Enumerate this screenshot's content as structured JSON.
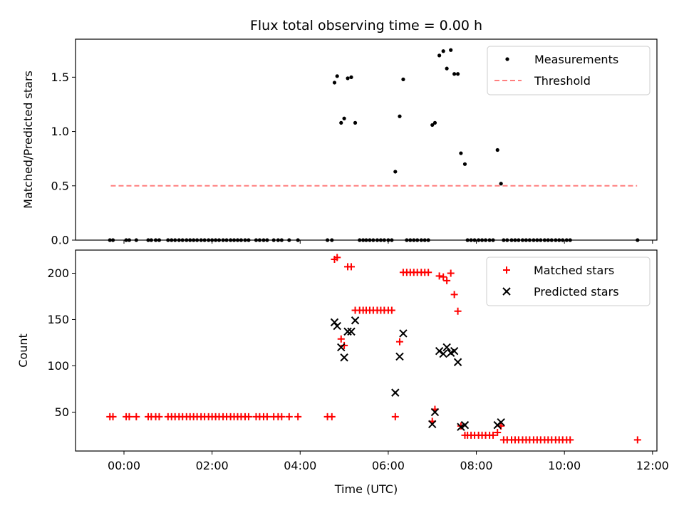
{
  "title": "Flux total observing time = 0.00 h",
  "chart_data": [
    {
      "type": "scatter",
      "ylabel": "Matched/Predicted stars",
      "ylim": [
        0,
        1.85
      ],
      "yticks": [
        "0.0",
        "0.5",
        "1.0",
        "1.5"
      ],
      "ytick_values": [
        0,
        0.5,
        1.0,
        1.5
      ],
      "xlim": [
        -1.1,
        12.1
      ],
      "legend_position": "top-right",
      "series": [
        {
          "name": "Measurements",
          "color": "#000000",
          "marker": "dot",
          "points": [
            [
              -0.32,
              0
            ],
            [
              -0.25,
              0
            ],
            [
              0.05,
              0
            ],
            [
              0.12,
              0
            ],
            [
              0.28,
              0
            ],
            [
              0.55,
              0
            ],
            [
              0.62,
              0
            ],
            [
              0.72,
              0
            ],
            [
              0.8,
              0
            ],
            [
              1.0,
              0
            ],
            [
              1.08,
              0
            ],
            [
              1.16,
              0
            ],
            [
              1.25,
              0
            ],
            [
              1.33,
              0
            ],
            [
              1.42,
              0
            ],
            [
              1.5,
              0
            ],
            [
              1.58,
              0
            ],
            [
              1.66,
              0
            ],
            [
              1.75,
              0
            ],
            [
              1.83,
              0
            ],
            [
              1.92,
              0
            ],
            [
              2.0,
              0
            ],
            [
              2.08,
              0
            ],
            [
              2.16,
              0
            ],
            [
              2.25,
              0
            ],
            [
              2.33,
              0
            ],
            [
              2.42,
              0
            ],
            [
              2.5,
              0
            ],
            [
              2.58,
              0
            ],
            [
              2.66,
              0
            ],
            [
              2.75,
              0
            ],
            [
              2.83,
              0
            ],
            [
              3.0,
              0
            ],
            [
              3.08,
              0
            ],
            [
              3.17,
              0
            ],
            [
              3.25,
              0
            ],
            [
              3.4,
              0
            ],
            [
              3.5,
              0
            ],
            [
              3.58,
              0
            ],
            [
              3.75,
              0
            ],
            [
              3.95,
              0
            ],
            [
              4.62,
              0
            ],
            [
              4.72,
              0
            ],
            [
              4.78,
              1.45
            ],
            [
              4.84,
              1.51
            ],
            [
              4.93,
              1.08
            ],
            [
              5.0,
              1.12
            ],
            [
              5.08,
              1.49
            ],
            [
              5.16,
              1.5
            ],
            [
              5.25,
              1.08
            ],
            [
              5.35,
              0
            ],
            [
              5.43,
              0
            ],
            [
              5.5,
              0
            ],
            [
              5.58,
              0
            ],
            [
              5.66,
              0
            ],
            [
              5.75,
              0
            ],
            [
              5.83,
              0
            ],
            [
              5.91,
              0
            ],
            [
              6.0,
              0
            ],
            [
              6.08,
              0
            ],
            [
              6.16,
              0.63
            ],
            [
              6.26,
              1.14
            ],
            [
              6.34,
              1.48
            ],
            [
              6.42,
              0
            ],
            [
              6.5,
              0
            ],
            [
              6.58,
              0
            ],
            [
              6.66,
              0
            ],
            [
              6.75,
              0
            ],
            [
              6.83,
              0
            ],
            [
              6.91,
              0
            ],
            [
              7.0,
              1.06
            ],
            [
              7.06,
              1.08
            ],
            [
              7.16,
              1.7
            ],
            [
              7.25,
              1.74
            ],
            [
              7.33,
              1.58
            ],
            [
              7.42,
              1.75
            ],
            [
              7.5,
              1.53
            ],
            [
              7.58,
              1.53
            ],
            [
              7.65,
              0.8
            ],
            [
              7.74,
              0.7
            ],
            [
              7.8,
              0
            ],
            [
              7.88,
              0
            ],
            [
              7.96,
              0
            ],
            [
              8.05,
              0
            ],
            [
              8.13,
              0
            ],
            [
              8.21,
              0
            ],
            [
              8.3,
              0
            ],
            [
              8.38,
              0
            ],
            [
              8.48,
              0.83
            ],
            [
              8.56,
              0.52
            ],
            [
              8.62,
              0
            ],
            [
              8.7,
              0
            ],
            [
              8.8,
              0
            ],
            [
              8.88,
              0
            ],
            [
              8.96,
              0
            ],
            [
              9.05,
              0
            ],
            [
              9.13,
              0
            ],
            [
              9.21,
              0
            ],
            [
              9.3,
              0
            ],
            [
              9.38,
              0
            ],
            [
              9.46,
              0
            ],
            [
              9.55,
              0
            ],
            [
              9.63,
              0
            ],
            [
              9.71,
              0
            ],
            [
              9.8,
              0
            ],
            [
              9.88,
              0
            ],
            [
              9.96,
              0
            ],
            [
              10.05,
              0
            ],
            [
              10.13,
              0
            ],
            [
              11.66,
              0
            ]
          ]
        },
        {
          "name": "Threshold",
          "color": "#ff7f7f",
          "style": "dashed",
          "points": [
            [
              -0.3,
              0.5
            ],
            [
              11.65,
              0.5
            ]
          ]
        }
      ]
    },
    {
      "type": "scatter",
      "xlabel": "Time (UTC)",
      "ylabel": "Count",
      "ylim": [
        8,
        225
      ],
      "yticks": [
        "50",
        "100",
        "150",
        "200"
      ],
      "ytick_values": [
        50,
        100,
        150,
        200
      ],
      "xlim": [
        -1.1,
        12.1
      ],
      "xticks": [
        "00:00",
        "02:00",
        "04:00",
        "06:00",
        "08:00",
        "10:00",
        "12:00"
      ],
      "xtick_values": [
        0,
        2,
        4,
        6,
        8,
        10,
        12
      ],
      "legend_position": "top-right",
      "series": [
        {
          "name": "Matched stars",
          "color": "#ff0000",
          "marker": "plus",
          "points": [
            [
              -0.32,
              45
            ],
            [
              -0.25,
              45
            ],
            [
              0.05,
              45
            ],
            [
              0.12,
              45
            ],
            [
              0.28,
              45
            ],
            [
              0.55,
              45
            ],
            [
              0.62,
              45
            ],
            [
              0.72,
              45
            ],
            [
              0.8,
              45
            ],
            [
              1.0,
              45
            ],
            [
              1.08,
              45
            ],
            [
              1.16,
              45
            ],
            [
              1.25,
              45
            ],
            [
              1.33,
              45
            ],
            [
              1.42,
              45
            ],
            [
              1.5,
              45
            ],
            [
              1.58,
              45
            ],
            [
              1.66,
              45
            ],
            [
              1.75,
              45
            ],
            [
              1.83,
              45
            ],
            [
              1.92,
              45
            ],
            [
              2.0,
              45
            ],
            [
              2.08,
              45
            ],
            [
              2.16,
              45
            ],
            [
              2.25,
              45
            ],
            [
              2.33,
              45
            ],
            [
              2.42,
              45
            ],
            [
              2.5,
              45
            ],
            [
              2.58,
              45
            ],
            [
              2.66,
              45
            ],
            [
              2.75,
              45
            ],
            [
              2.83,
              45
            ],
            [
              3.0,
              45
            ],
            [
              3.08,
              45
            ],
            [
              3.17,
              45
            ],
            [
              3.25,
              45
            ],
            [
              3.4,
              45
            ],
            [
              3.5,
              45
            ],
            [
              3.58,
              45
            ],
            [
              3.75,
              45
            ],
            [
              3.95,
              45
            ],
            [
              4.62,
              45
            ],
            [
              4.72,
              45
            ],
            [
              4.78,
              215
            ],
            [
              4.84,
              217
            ],
            [
              4.93,
              129
            ],
            [
              5.0,
              122
            ],
            [
              5.08,
              207
            ],
            [
              5.16,
              207
            ],
            [
              5.25,
              160
            ],
            [
              5.35,
              160
            ],
            [
              5.43,
              160
            ],
            [
              5.5,
              160
            ],
            [
              5.58,
              160
            ],
            [
              5.66,
              160
            ],
            [
              5.75,
              160
            ],
            [
              5.83,
              160
            ],
            [
              5.91,
              160
            ],
            [
              6.0,
              160
            ],
            [
              6.08,
              160
            ],
            [
              6.16,
              45
            ],
            [
              6.26,
              126
            ],
            [
              6.34,
              201
            ],
            [
              6.42,
              201
            ],
            [
              6.5,
              201
            ],
            [
              6.58,
              201
            ],
            [
              6.66,
              201
            ],
            [
              6.75,
              201
            ],
            [
              6.83,
              201
            ],
            [
              6.91,
              201
            ],
            [
              7.0,
              40
            ],
            [
              7.06,
              53
            ],
            [
              7.16,
              197
            ],
            [
              7.25,
              196
            ],
            [
              7.33,
              192
            ],
            [
              7.42,
              200
            ],
            [
              7.5,
              177
            ],
            [
              7.58,
              159
            ],
            [
              7.65,
              35
            ],
            [
              7.74,
              25
            ],
            [
              7.8,
              25
            ],
            [
              7.88,
              25
            ],
            [
              7.96,
              25
            ],
            [
              8.05,
              25
            ],
            [
              8.13,
              25
            ],
            [
              8.21,
              25
            ],
            [
              8.3,
              25
            ],
            [
              8.38,
              25
            ],
            [
              8.48,
              28
            ],
            [
              8.56,
              35
            ],
            [
              8.62,
              20
            ],
            [
              8.7,
              20
            ],
            [
              8.8,
              20
            ],
            [
              8.88,
              20
            ],
            [
              8.96,
              20
            ],
            [
              9.05,
              20
            ],
            [
              9.13,
              20
            ],
            [
              9.21,
              20
            ],
            [
              9.3,
              20
            ],
            [
              9.38,
              20
            ],
            [
              9.46,
              20
            ],
            [
              9.55,
              20
            ],
            [
              9.63,
              20
            ],
            [
              9.71,
              20
            ],
            [
              9.8,
              20
            ],
            [
              9.88,
              20
            ],
            [
              9.96,
              20
            ],
            [
              10.05,
              20
            ],
            [
              10.13,
              20
            ],
            [
              11.66,
              20
            ]
          ]
        },
        {
          "name": "Predicted stars",
          "color": "#000000",
          "marker": "x",
          "points": [
            [
              4.78,
              147
            ],
            [
              4.84,
              143
            ],
            [
              4.93,
              120
            ],
            [
              5.0,
              109
            ],
            [
              5.08,
              137
            ],
            [
              5.16,
              137
            ],
            [
              5.25,
              149
            ],
            [
              6.16,
              71
            ],
            [
              6.26,
              110
            ],
            [
              6.34,
              135
            ],
            [
              7.0,
              37
            ],
            [
              7.06,
              50
            ],
            [
              7.16,
              116
            ],
            [
              7.25,
              113
            ],
            [
              7.33,
              120
            ],
            [
              7.42,
              114
            ],
            [
              7.5,
              116
            ],
            [
              7.58,
              104
            ],
            [
              7.65,
              34
            ],
            [
              7.74,
              36
            ],
            [
              8.48,
              36
            ],
            [
              8.56,
              39
            ]
          ]
        }
      ]
    }
  ]
}
